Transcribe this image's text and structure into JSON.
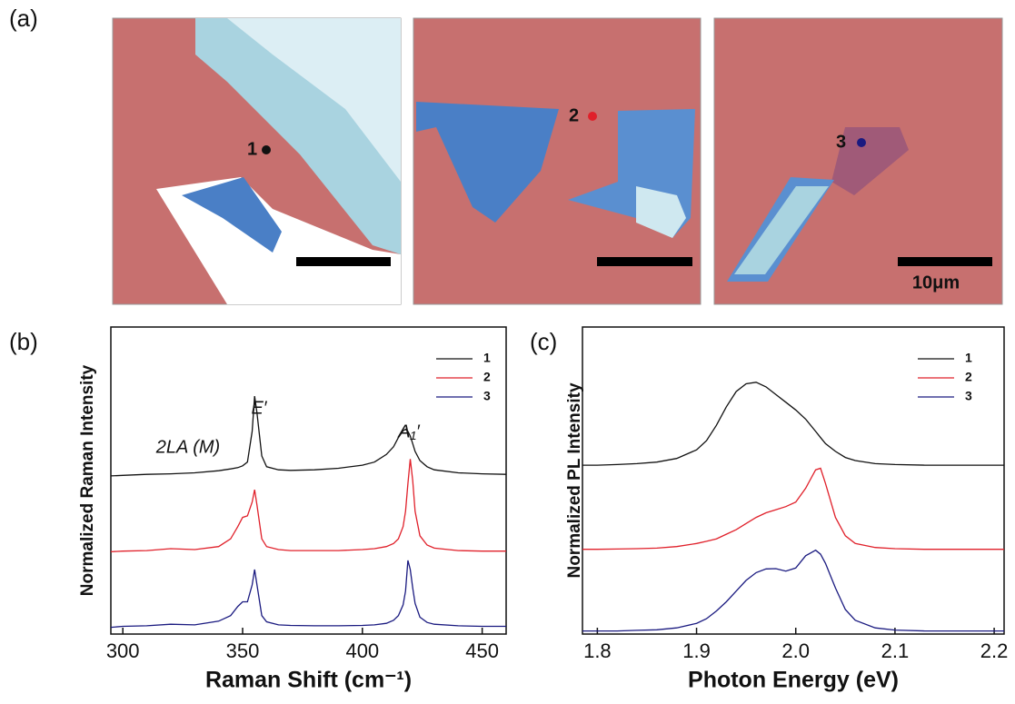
{
  "figure": {
    "panel_labels": [
      "(a)",
      "(b)",
      "(c)"
    ],
    "point_labels": [
      "1",
      "2",
      "3"
    ],
    "scale_bar_label": "10μm"
  },
  "chart_data": [
    {
      "type": "line",
      "x_label": "Raman Shift (cm⁻¹)",
      "y_label": "Normalized Raman Intensity",
      "annotations": [
        "E′",
        "A₁′",
        "2LA (M)"
      ],
      "x": [
        295,
        300,
        310,
        320,
        330,
        340,
        345,
        348,
        350,
        352,
        354,
        355,
        356,
        358,
        360,
        365,
        370,
        380,
        390,
        400,
        405,
        410,
        413,
        415,
        417,
        418,
        419,
        420,
        421,
        422,
        424,
        427,
        430,
        440,
        450,
        460
      ],
      "series": [
        {
          "name": "1",
          "color": "#111111",
          "values": [
            5.15,
            5.17,
            5.2,
            5.22,
            5.25,
            5.32,
            5.38,
            5.42,
            5.48,
            5.6,
            6.6,
            7.75,
            7.2,
            5.8,
            5.45,
            5.35,
            5.33,
            5.35,
            5.4,
            5.5,
            5.6,
            5.85,
            6.1,
            6.4,
            6.62,
            6.67,
            6.6,
            6.45,
            6.2,
            5.95,
            5.65,
            5.45,
            5.35,
            5.25,
            5.22,
            5.2
          ]
        },
        {
          "name": "2",
          "color": "#e0202a",
          "values": [
            2.68,
            2.7,
            2.72,
            2.78,
            2.75,
            2.85,
            3.1,
            3.5,
            3.8,
            3.85,
            4.3,
            4.7,
            4.2,
            3.1,
            2.85,
            2.75,
            2.72,
            2.72,
            2.72,
            2.75,
            2.78,
            2.85,
            2.95,
            3.1,
            3.5,
            4.0,
            4.9,
            5.7,
            5.0,
            4.0,
            3.2,
            2.9,
            2.8,
            2.72,
            2.7,
            2.7
          ]
        },
        {
          "name": "3",
          "color": "#1a1a80",
          "values": [
            0.22,
            0.25,
            0.27,
            0.32,
            0.3,
            0.42,
            0.6,
            0.9,
            1.05,
            1.05,
            1.6,
            2.1,
            1.6,
            0.6,
            0.4,
            0.3,
            0.28,
            0.27,
            0.27,
            0.28,
            0.3,
            0.35,
            0.45,
            0.6,
            0.95,
            1.4,
            2.4,
            2.1,
            1.5,
            1.0,
            0.55,
            0.38,
            0.32,
            0.27,
            0.25,
            0.25
          ]
        }
      ],
      "xlim": [
        295,
        460
      ],
      "xticks": [
        300,
        350,
        400,
        450
      ],
      "ylim": [
        0,
        10
      ]
    },
    {
      "type": "line",
      "x_label": "Photon Energy (eV)",
      "y_label": "Normalized PL Intensity",
      "x": [
        1.785,
        1.8,
        1.82,
        1.84,
        1.86,
        1.88,
        1.9,
        1.91,
        1.92,
        1.93,
        1.94,
        1.95,
        1.96,
        1.97,
        1.98,
        1.99,
        2.0,
        2.01,
        2.02,
        2.025,
        2.03,
        2.04,
        2.05,
        2.06,
        2.08,
        2.1,
        2.13,
        2.16,
        2.21
      ],
      "series": [
        {
          "name": "1",
          "color": "#111111",
          "values": [
            5.5,
            5.5,
            5.52,
            5.55,
            5.6,
            5.72,
            6.0,
            6.3,
            6.8,
            7.4,
            7.9,
            8.15,
            8.2,
            8.05,
            7.8,
            7.55,
            7.3,
            7.0,
            6.6,
            6.4,
            6.2,
            5.95,
            5.75,
            5.65,
            5.55,
            5.52,
            5.5,
            5.5,
            5.5
          ]
        },
        {
          "name": "2",
          "color": "#e0202a",
          "values": [
            2.76,
            2.76,
            2.77,
            2.78,
            2.8,
            2.85,
            2.95,
            3.02,
            3.1,
            3.25,
            3.4,
            3.6,
            3.8,
            3.95,
            4.05,
            4.15,
            4.3,
            4.75,
            5.35,
            5.4,
            4.9,
            3.8,
            3.2,
            2.95,
            2.82,
            2.78,
            2.76,
            2.76,
            2.76
          ]
        },
        {
          "name": "3",
          "color": "#1a1a80",
          "values": [
            0.1,
            0.1,
            0.1,
            0.12,
            0.14,
            0.2,
            0.35,
            0.5,
            0.75,
            1.05,
            1.4,
            1.75,
            2.0,
            2.12,
            2.13,
            2.05,
            2.15,
            2.55,
            2.73,
            2.6,
            2.3,
            1.5,
            0.8,
            0.45,
            0.2,
            0.13,
            0.1,
            0.1,
            0.1
          ]
        }
      ],
      "xlim": [
        1.785,
        2.21
      ],
      "xticks": [
        1.8,
        1.9,
        {
          "value": 2,
          "label": "2.0"
        },
        2.1,
        2.2
      ],
      "ylim": [
        0,
        10
      ]
    }
  ]
}
